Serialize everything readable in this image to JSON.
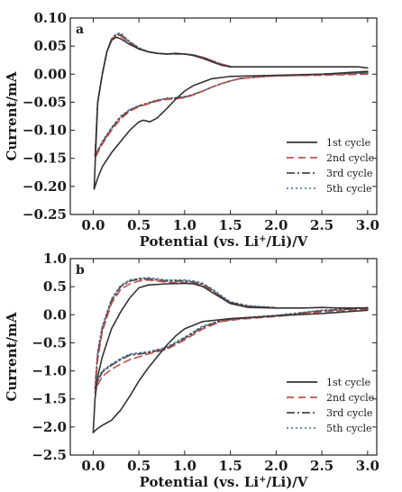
{
  "chart_data": [
    {
      "type": "line",
      "panel_label": "a",
      "xlabel_main": "Potential (vs. Li",
      "xlabel_sup": "+",
      "xlabel_end": "/Li)/V",
      "ylabel": "Current/mA",
      "xlim": [
        -0.25,
        3.1
      ],
      "ylim": [
        -0.25,
        0.1
      ],
      "x_ticks": [
        0.0,
        0.5,
        1.0,
        1.5,
        2.0,
        2.5,
        3.0
      ],
      "x_tick_labels": [
        "0.0",
        "0.5",
        "1.0",
        "1.5",
        "2.0",
        "2.5",
        "3.0"
      ],
      "y_ticks": [
        0.1,
        0.05,
        0.0,
        -0.05,
        -0.1,
        -0.15,
        -0.2,
        -0.25
      ],
      "y_tick_labels": [
        "0.10",
        "0.05",
        "0.00",
        "−0.05",
        "−0.10",
        "−0.15",
        "−0.20",
        "−0.25"
      ],
      "legend_position": "lower-right",
      "series": [
        {
          "name": "1st cycle",
          "color": "#333333",
          "dash": "solid",
          "x": [
            3.0,
            2.5,
            2.0,
            1.5,
            1.3,
            1.1,
            1.0,
            0.9,
            0.8,
            0.7,
            0.62,
            0.55,
            0.5,
            0.4,
            0.3,
            0.2,
            0.1,
            0.05,
            0.01,
            0.05,
            0.1,
            0.15,
            0.2,
            0.25,
            0.3,
            0.4,
            0.5,
            0.6,
            0.7,
            0.8,
            0.9,
            1.0,
            1.1,
            1.2,
            1.3,
            1.4,
            1.5,
            1.6,
            2.0,
            2.5,
            2.9,
            3.0
          ],
          "y": [
            0.005,
            0.0,
            -0.002,
            -0.004,
            -0.008,
            -0.02,
            -0.03,
            -0.045,
            -0.062,
            -0.078,
            -0.085,
            -0.082,
            -0.085,
            -0.1,
            -0.12,
            -0.14,
            -0.165,
            -0.185,
            -0.205,
            -0.05,
            0.0,
            0.04,
            0.06,
            0.066,
            0.063,
            0.053,
            0.045,
            0.04,
            0.037,
            0.036,
            0.037,
            0.036,
            0.033,
            0.028,
            0.022,
            0.016,
            0.013,
            0.013,
            0.013,
            0.013,
            0.013,
            0.011
          ]
        },
        {
          "name": "2nd cycle",
          "color": "#c0504d",
          "dash": "8,5",
          "x": [
            3.0,
            2.5,
            2.0,
            1.8,
            1.6,
            1.5,
            1.4,
            1.3,
            1.2,
            1.1,
            1.0,
            0.9,
            0.8,
            0.7,
            0.6,
            0.5,
            0.4,
            0.3,
            0.2,
            0.1,
            0.05,
            0.02,
            0.05,
            0.1,
            0.15,
            0.2,
            0.25,
            0.3,
            0.4,
            0.5,
            0.6,
            0.7,
            0.8,
            0.9,
            1.0,
            1.1,
            1.2,
            1.3,
            1.4,
            1.5
          ],
          "y": [
            0.0,
            -0.002,
            -0.003,
            -0.005,
            -0.008,
            -0.012,
            -0.017,
            -0.023,
            -0.03,
            -0.037,
            -0.042,
            -0.044,
            -0.045,
            -0.048,
            -0.053,
            -0.058,
            -0.066,
            -0.08,
            -0.1,
            -0.125,
            -0.14,
            -0.15,
            -0.05,
            0.0,
            0.04,
            0.062,
            0.069,
            0.068,
            0.055,
            0.045,
            0.04,
            0.037,
            0.036,
            0.036,
            0.036,
            0.034,
            0.03,
            0.024,
            0.018,
            0.014
          ]
        },
        {
          "name": "3rd cycle",
          "color": "#4a4a4a",
          "dash": "9,3,2,3",
          "x": [
            3.0,
            2.5,
            2.0,
            1.8,
            1.6,
            1.5,
            1.4,
            1.3,
            1.2,
            1.1,
            1.0,
            0.9,
            0.8,
            0.7,
            0.6,
            0.5,
            0.4,
            0.3,
            0.2,
            0.1,
            0.05,
            0.02,
            0.05,
            0.1,
            0.15,
            0.2,
            0.25,
            0.3,
            0.4,
            0.5,
            0.6,
            0.7,
            0.8,
            0.9,
            1.0,
            1.1,
            1.2,
            1.3,
            1.4,
            1.5
          ],
          "y": [
            0.002,
            -0.001,
            -0.003,
            -0.005,
            -0.008,
            -0.012,
            -0.017,
            -0.023,
            -0.03,
            -0.036,
            -0.041,
            -0.043,
            -0.044,
            -0.047,
            -0.052,
            -0.057,
            -0.064,
            -0.077,
            -0.097,
            -0.122,
            -0.137,
            -0.147,
            -0.05,
            0.0,
            0.04,
            0.062,
            0.07,
            0.07,
            0.057,
            0.046,
            0.04,
            0.037,
            0.036,
            0.036,
            0.036,
            0.034,
            0.03,
            0.024,
            0.018,
            0.014
          ]
        },
        {
          "name": "5th cycle",
          "color": "#5b7dae",
          "dash": "2,3",
          "x": [
            3.0,
            2.5,
            2.0,
            1.8,
            1.6,
            1.5,
            1.4,
            1.3,
            1.2,
            1.1,
            1.0,
            0.9,
            0.8,
            0.7,
            0.6,
            0.5,
            0.4,
            0.3,
            0.2,
            0.1,
            0.05,
            0.02,
            0.05,
            0.1,
            0.15,
            0.2,
            0.25,
            0.3,
            0.4,
            0.5,
            0.6,
            0.7,
            0.8,
            0.9,
            1.0,
            1.1,
            1.2,
            1.3,
            1.4,
            1.5
          ],
          "y": [
            0.003,
            0.0,
            -0.003,
            -0.005,
            -0.008,
            -0.012,
            -0.017,
            -0.023,
            -0.03,
            -0.036,
            -0.04,
            -0.042,
            -0.043,
            -0.046,
            -0.051,
            -0.056,
            -0.063,
            -0.075,
            -0.095,
            -0.12,
            -0.135,
            -0.145,
            -0.05,
            0.0,
            0.04,
            0.063,
            0.072,
            0.073,
            0.058,
            0.047,
            0.04,
            0.037,
            0.036,
            0.036,
            0.036,
            0.034,
            0.03,
            0.024,
            0.018,
            0.014
          ]
        }
      ]
    },
    {
      "type": "line",
      "panel_label": "b",
      "xlabel_main": "Potential (vs. Li",
      "xlabel_sup": "+",
      "xlabel_end": "/Li)/V",
      "ylabel": "Current/mA",
      "xlim": [
        -0.25,
        3.1
      ],
      "ylim": [
        -2.5,
        1.0
      ],
      "x_ticks": [
        0.0,
        0.5,
        1.0,
        1.5,
        2.0,
        2.5,
        3.0
      ],
      "x_tick_labels": [
        "0.0",
        "0.5",
        "1.0",
        "1.5",
        "2.0",
        "2.5",
        "3.0"
      ],
      "y_ticks": [
        1.0,
        0.5,
        0.0,
        -0.5,
        -1.0,
        -1.5,
        -2.0,
        -2.5
      ],
      "y_tick_labels": [
        "1.0",
        "0.5",
        "0.0",
        "−0.5",
        "−1.0",
        "−1.5",
        "−2.0",
        "−2.5"
      ],
      "legend_position": "lower-right",
      "series": [
        {
          "name": "1st cycle",
          "color": "#333333",
          "dash": "solid",
          "x": [
            3.0,
            2.5,
            2.0,
            1.5,
            1.2,
            1.0,
            0.9,
            0.8,
            0.7,
            0.6,
            0.5,
            0.4,
            0.3,
            0.2,
            0.1,
            0.03,
            0.0,
            0.02,
            0.05,
            0.1,
            0.15,
            0.2,
            0.3,
            0.4,
            0.5,
            0.6,
            0.8,
            1.0,
            1.1,
            1.2,
            1.3,
            1.4,
            1.5,
            1.7,
            2.0,
            2.3,
            2.5,
            2.7,
            2.9,
            3.0
          ],
          "y": [
            0.08,
            0.02,
            -0.02,
            -0.07,
            -0.12,
            -0.25,
            -0.38,
            -0.55,
            -0.75,
            -0.95,
            -1.18,
            -1.45,
            -1.7,
            -1.88,
            -1.97,
            -2.05,
            -2.1,
            -1.5,
            -1.1,
            -0.75,
            -0.5,
            -0.25,
            0.05,
            0.3,
            0.48,
            0.53,
            0.55,
            0.56,
            0.55,
            0.5,
            0.4,
            0.3,
            0.2,
            0.13,
            0.12,
            0.12,
            0.13,
            0.12,
            0.12,
            0.12
          ]
        },
        {
          "name": "2nd cycle",
          "color": "#c0504d",
          "dash": "8,5",
          "x": [
            3.0,
            2.5,
            2.0,
            1.6,
            1.4,
            1.2,
            1.0,
            0.8,
            0.6,
            0.5,
            0.4,
            0.3,
            0.2,
            0.1,
            0.05,
            0.02,
            0.05,
            0.1,
            0.2,
            0.3,
            0.4,
            0.5,
            0.6,
            0.7,
            0.8,
            0.9,
            1.0,
            1.1,
            1.2,
            1.3,
            1.4,
            1.5,
            1.7,
            2.0
          ],
          "y": [
            0.1,
            0.05,
            -0.03,
            -0.08,
            -0.12,
            -0.25,
            -0.45,
            -0.62,
            -0.7,
            -0.75,
            -0.8,
            -0.88,
            -0.97,
            -1.1,
            -1.25,
            -1.4,
            -0.8,
            -0.3,
            0.2,
            0.45,
            0.55,
            0.6,
            0.62,
            0.6,
            0.58,
            0.57,
            0.57,
            0.56,
            0.52,
            0.42,
            0.3,
            0.2,
            0.14,
            0.12
          ]
        },
        {
          "name": "3rd cycle",
          "color": "#4a4a4a",
          "dash": "9,3,2,3",
          "x": [
            3.0,
            2.5,
            2.0,
            1.6,
            1.4,
            1.2,
            1.0,
            0.8,
            0.6,
            0.5,
            0.4,
            0.3,
            0.2,
            0.1,
            0.05,
            0.02,
            0.05,
            0.1,
            0.2,
            0.3,
            0.4,
            0.5,
            0.6,
            0.7,
            0.8,
            0.9,
            1.0,
            1.1,
            1.2,
            1.3,
            1.4,
            1.5,
            1.7,
            2.0
          ],
          "y": [
            0.12,
            0.07,
            -0.02,
            -0.07,
            -0.11,
            -0.22,
            -0.42,
            -0.6,
            -0.68,
            -0.7,
            -0.72,
            -0.8,
            -0.9,
            -1.02,
            -1.18,
            -1.32,
            -0.7,
            -0.25,
            0.25,
            0.5,
            0.6,
            0.63,
            0.64,
            0.62,
            0.6,
            0.6,
            0.6,
            0.58,
            0.54,
            0.44,
            0.32,
            0.22,
            0.15,
            0.12
          ]
        },
        {
          "name": "5th cycle",
          "color": "#5b7dae",
          "dash": "2,3",
          "x": [
            3.0,
            2.5,
            2.0,
            1.6,
            1.4,
            1.2,
            1.0,
            0.8,
            0.6,
            0.5,
            0.4,
            0.3,
            0.2,
            0.1,
            0.05,
            0.02,
            0.05,
            0.1,
            0.2,
            0.3,
            0.4,
            0.5,
            0.6,
            0.7,
            0.8,
            0.9,
            1.0,
            1.1,
            1.2,
            1.3,
            1.4,
            1.5,
            1.7,
            2.0
          ],
          "y": [
            0.13,
            0.08,
            -0.01,
            -0.06,
            -0.1,
            -0.2,
            -0.4,
            -0.58,
            -0.66,
            -0.68,
            -0.7,
            -0.78,
            -0.88,
            -1.0,
            -1.15,
            -1.3,
            -0.65,
            -0.2,
            0.28,
            0.52,
            0.62,
            0.65,
            0.66,
            0.64,
            0.62,
            0.62,
            0.62,
            0.6,
            0.56,
            0.46,
            0.34,
            0.23,
            0.16,
            0.13
          ]
        }
      ]
    }
  ]
}
